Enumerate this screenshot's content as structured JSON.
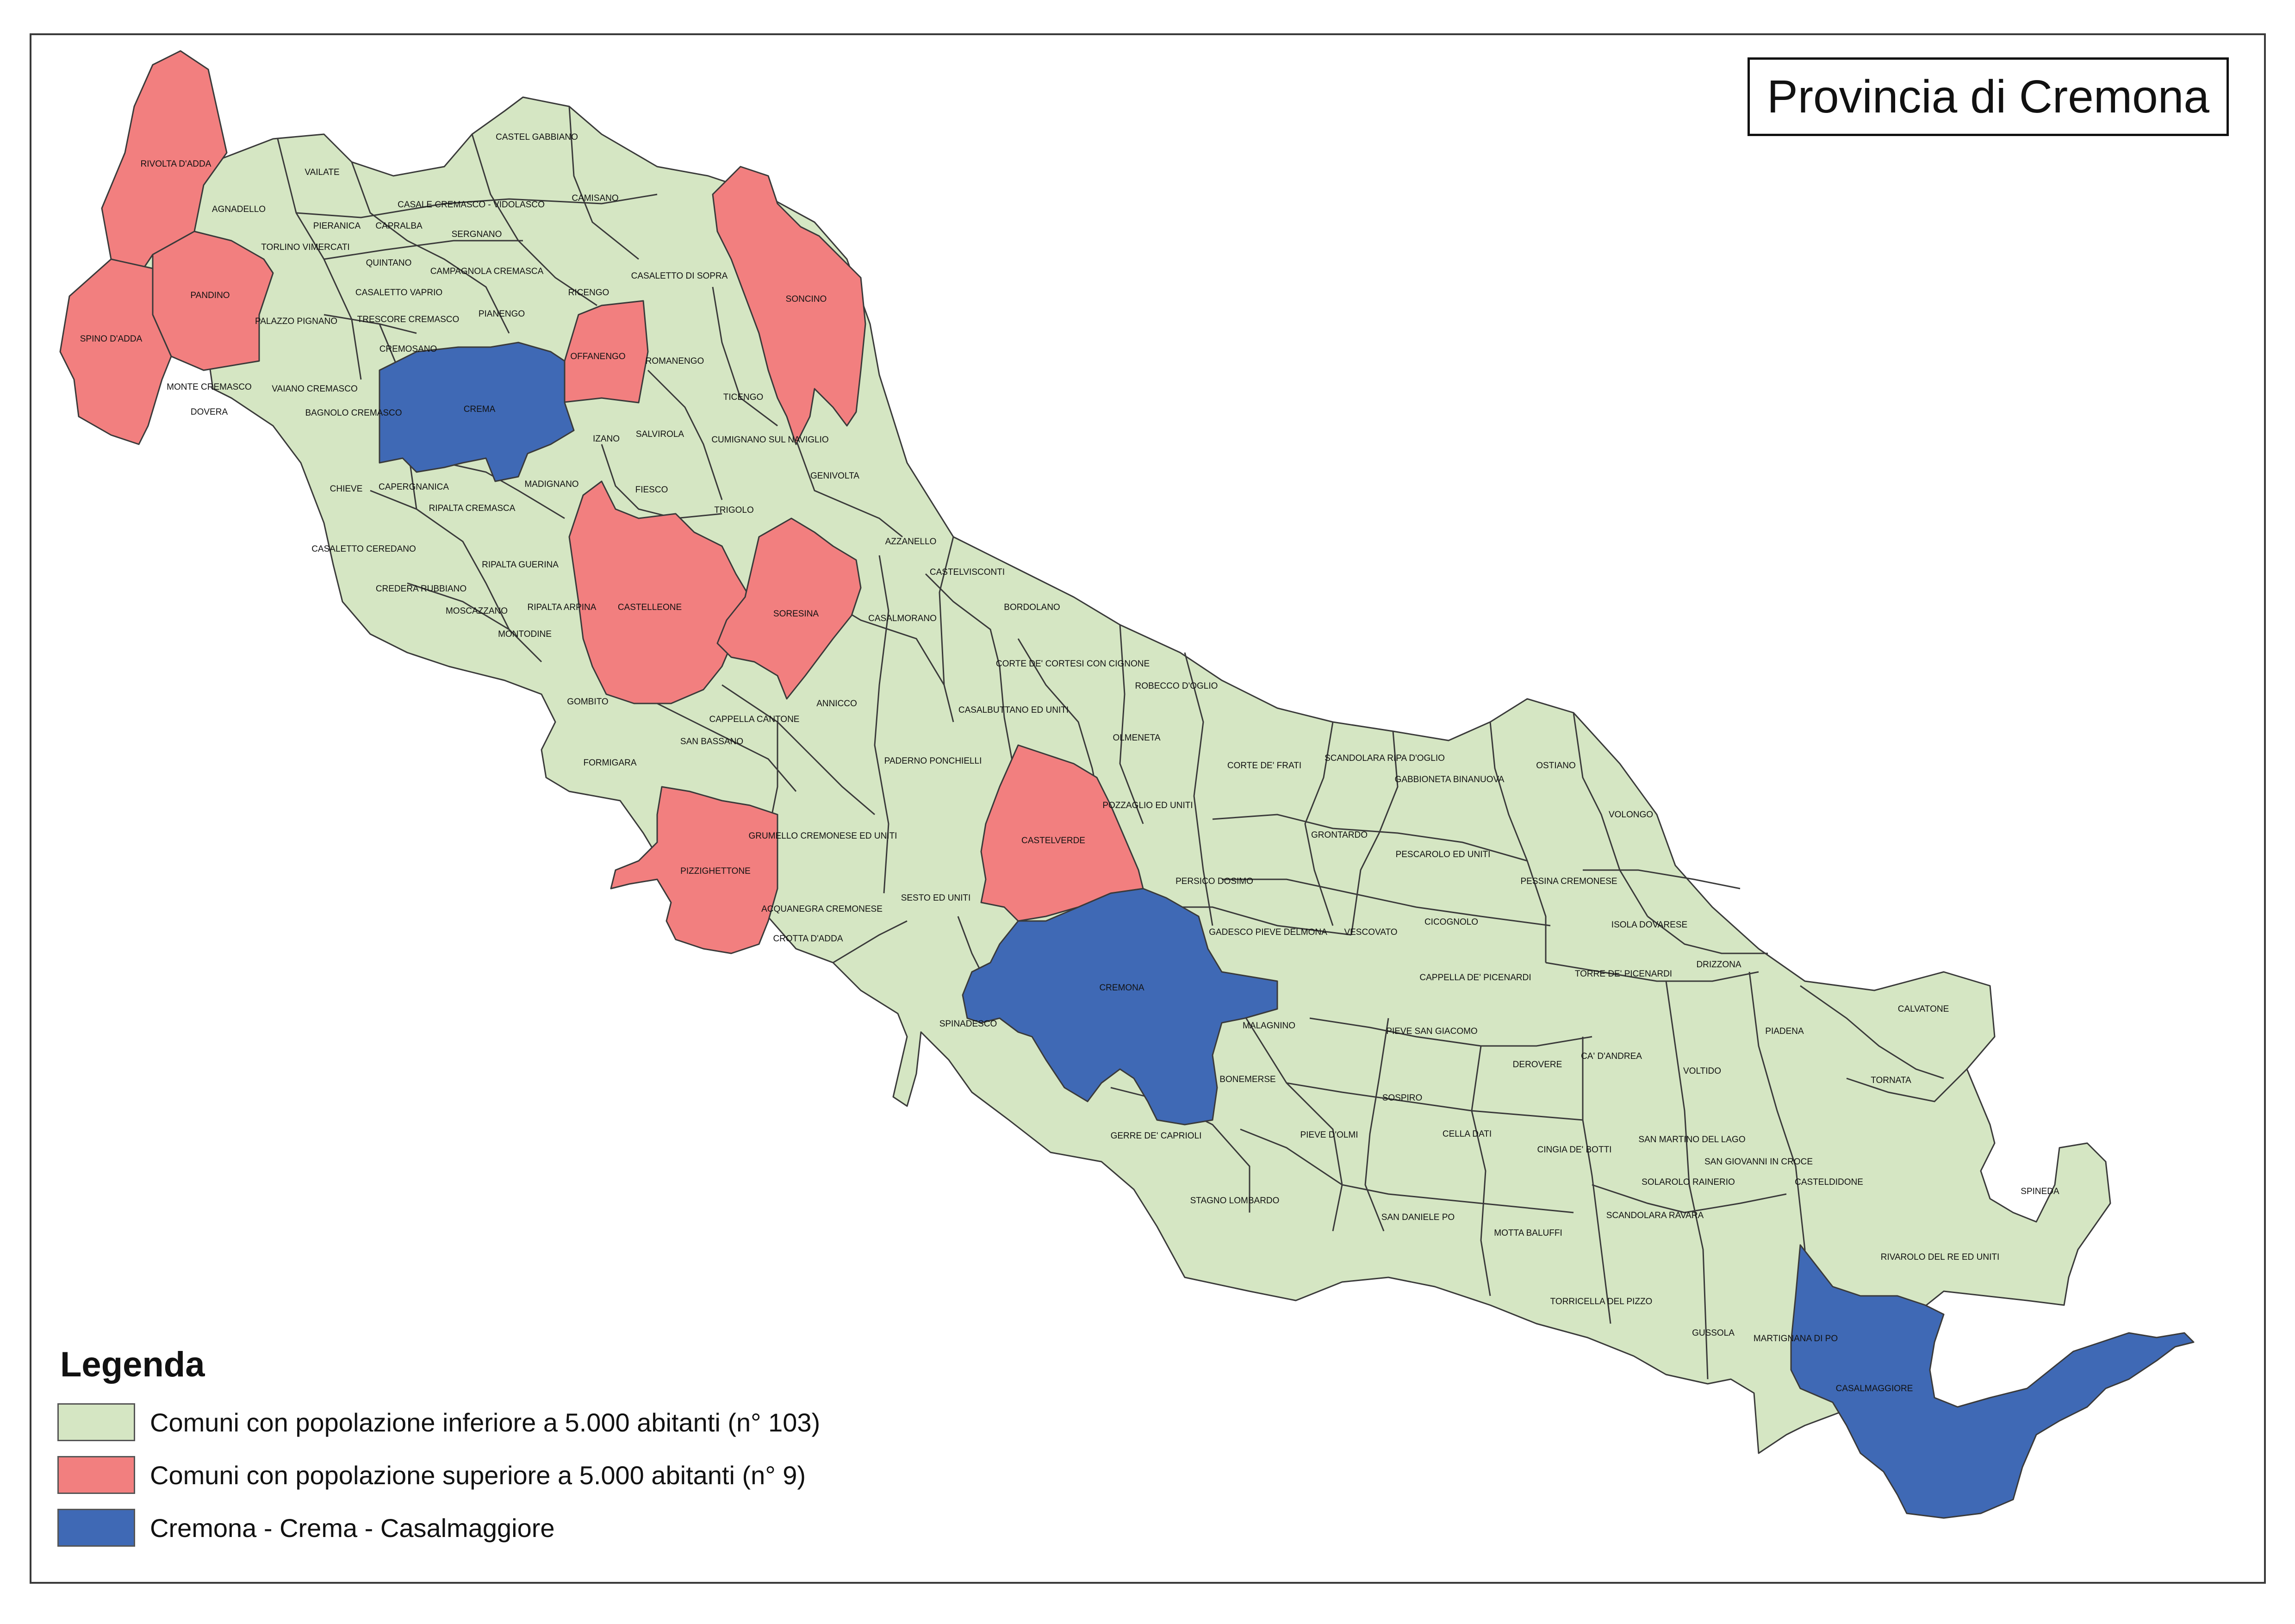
{
  "title": "Provincia di Cremona",
  "colors": {
    "small": "#d5e6c3",
    "large": "#f27f7f",
    "capoluogo": "#3f69b5",
    "border": "#3a3a3a"
  },
  "legend": {
    "title": "Legenda",
    "items": [
      {
        "key": "small",
        "label": "Comuni con popolazione inferiore a 5.000 abitanti (n° 103)"
      },
      {
        "key": "large",
        "label": "Comuni con popolazione superiore a 5.000 abitanti (n° 9)"
      },
      {
        "key": "capoluogo",
        "label": "Cremona - Crema - Casalmaggiore"
      }
    ]
  },
  "municipalities_large": [
    "RIVOLTA D'ADDA",
    "PANDINO",
    "SPINO D'ADDA",
    "OFFANENGO",
    "SONCINO",
    "CASTELLEONE",
    "SORESINA",
    "PIZZIGHETTONE",
    "CASTELVERDE"
  ],
  "municipalities_capoluogo": [
    "CREMA",
    "CREMONA",
    "CASALMAGGIORE"
  ],
  "municipality_labels": [
    "CASTEL GABBIANO",
    "VAILATE",
    "AGNADELLO",
    "CASALE CREMASCO - VIDOLASCO",
    "CAMISANO",
    "PIERANICA",
    "CAPRALBA",
    "SERGNANO",
    "TORLINO VIMERCATI",
    "QUINTANO",
    "CAMPAGNOLA CREMASCA",
    "CASALETTO DI SOPRA",
    "CASALETTO VAPRIO",
    "RICENGO",
    "PALAZZO PIGNANO",
    "TRESCORE CREMASCO",
    "PIANENGO",
    "CREMOSANO",
    "ROMANENGO",
    "MONTE CREMASCO",
    "VAIANO CREMASCO",
    "TICENGO",
    "DOVERA",
    "BAGNOLO CREMASCO",
    "IZANO",
    "SALVIROLA",
    "CUMIGNANO SUL NAVIGLIO",
    "GENIVOLTA",
    "CHIEVE",
    "CAPERGNANICA",
    "MADIGNANO",
    "FIESCO",
    "TRIGOLO",
    "RIPALTA CREMASCA",
    "CASALETTO CEREDANO",
    "RIPALTA GUERINA",
    "AZZANELLO",
    "CASTELVISCONTI",
    "CREDERA RUBBIANO",
    "MOSCAZZANO",
    "RIPALTA ARPINA",
    "MONTODINE",
    "BORDOLANO",
    "CASALMORANO",
    "CORTE DE' CORTESI CON CIGNONE",
    "ROBECCO D'OGLIO",
    "GOMBITO",
    "ANNICCO",
    "CAPPELLA CANTONE",
    "CASALBUTTANO ED UNITI",
    "SAN BASSANO",
    "FORMIGARA",
    "OLMENETA",
    "PADERNO PONCHIELLI",
    "CORTE DE' FRATI",
    "SCANDOLARA RIPA D'OGLIO",
    "OSTIANO",
    "GABBIONETA BINANUOVA",
    "POZZAGLIO ED UNITI",
    "GRUMELLO CREMONESE ED UNITI",
    "VOLONGO",
    "GRONTARDO",
    "PESCAROLO ED UNITI",
    "PERSICO DOSIMO",
    "SESTO ED UNITI",
    "PESSINA CREMONESE",
    "ACQUANEGRA CREMONESE",
    "CROTTA D'ADDA",
    "GADESCO PIEVE DELMONA",
    "VESCOVATO",
    "CICOGNOLO",
    "ISOLA DOVARESE",
    "CAPPELLA DE' PICENARDI",
    "TORRE DE' PICENARDI",
    "DRIZZONA",
    "CALVATONE",
    "SPINADESCO",
    "MALAGNINO",
    "PIEVE SAN GIACOMO",
    "PIADENA",
    "DEROVERE",
    "CA' D'ANDREA",
    "VOLTIDO",
    "TORNATA",
    "BONEMERSE",
    "SOSPIRO",
    "GERRE DE' CAPRIOLI",
    "PIEVE D'OLMI",
    "CELLA DATI",
    "CINGIA DE' BOTTI",
    "SAN MARTINO DEL LAGO",
    "SAN GIOVANNI IN CROCE",
    "SOLAROLO RAINERIO",
    "CASTELDIDONE",
    "SPINEDA",
    "STAGNO LOMBARDO",
    "SAN DANIELE PO",
    "MOTTA BALUFFI",
    "SCANDOLARA RAVARA",
    "RIVAROLO DEL RE ED UNITI",
    "TORRICELLA DEL PIZZO",
    "GUSSOLA",
    "MARTIGNANA DI PO"
  ]
}
